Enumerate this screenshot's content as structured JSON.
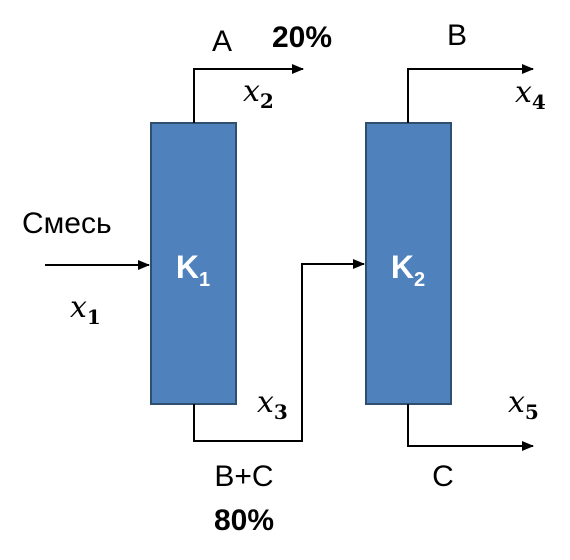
{
  "colors": {
    "column_fill": "#4f81bd",
    "line": "#000000"
  },
  "columns": [
    {
      "base": "K",
      "sub": "1"
    },
    {
      "base": "K",
      "sub": "2"
    }
  ],
  "streams": {
    "feed_label": "Смесь",
    "top1_label": "A",
    "top1_percent": "20%",
    "bottom1_label": "B+C",
    "bottom1_percent": "80%",
    "top2_label": "B",
    "bottom2_label": "C"
  },
  "variables": [
    {
      "base": "x",
      "sub": "1"
    },
    {
      "base": "x",
      "sub": "2"
    },
    {
      "base": "x",
      "sub": "3"
    },
    {
      "base": "x",
      "sub": "4"
    },
    {
      "base": "x",
      "sub": "5"
    }
  ]
}
